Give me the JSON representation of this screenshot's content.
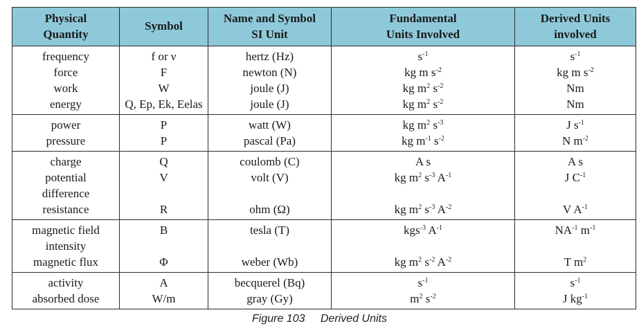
{
  "headers": {
    "quantity": [
      "Physical",
      "Quantity"
    ],
    "symbol": "Symbol",
    "si": [
      "Name and Symbol",
      "SI Unit"
    ],
    "fundamental": [
      "Fundamental",
      "Units Involved"
    ],
    "derived": [
      "Derived Units",
      "involved"
    ]
  },
  "groups": [
    {
      "quantity": [
        "frequency",
        "force",
        "work",
        "energy"
      ],
      "symbol": [
        "f or ν",
        "F",
        "W",
        "Q, Ep, Ek, Eelas"
      ],
      "si": [
        "hertz (Hz)",
        "newton (N)",
        "joule (J)",
        "joule (J)"
      ],
      "fundamental": [
        [
          {
            "t": "s"
          },
          {
            "sup": "-1"
          }
        ],
        [
          {
            "t": "kg m s"
          },
          {
            "sup": "-2"
          }
        ],
        [
          {
            "t": "kg m"
          },
          {
            "sup": "2"
          },
          {
            "t": " s"
          },
          {
            "sup": "-2"
          }
        ],
        [
          {
            "t": "kg m"
          },
          {
            "sup": "2"
          },
          {
            "t": " s"
          },
          {
            "sup": "-2"
          }
        ]
      ],
      "derived": [
        [
          {
            "t": "s"
          },
          {
            "sup": "-1"
          }
        ],
        [
          {
            "t": "kg m s"
          },
          {
            "sup": "-2"
          }
        ],
        [
          {
            "t": "Nm"
          }
        ],
        [
          {
            "t": "Nm"
          }
        ]
      ]
    },
    {
      "quantity": [
        "power",
        "pressure"
      ],
      "symbol": [
        "P",
        "P"
      ],
      "si": [
        "watt (W)",
        "pascal (Pa)"
      ],
      "fundamental": [
        [
          {
            "t": "kg m"
          },
          {
            "sup": "2"
          },
          {
            "t": " s"
          },
          {
            "sup": "-3"
          }
        ],
        [
          {
            "t": "kg m"
          },
          {
            "sup": "-1"
          },
          {
            "t": " s"
          },
          {
            "sup": "-2"
          }
        ]
      ],
      "derived": [
        [
          {
            "t": "J s"
          },
          {
            "sup": "-1"
          }
        ],
        [
          {
            "t": "N m"
          },
          {
            "sup": "-2"
          }
        ]
      ]
    },
    {
      "quantity": [
        "charge",
        "potential",
        "difference",
        "resistance"
      ],
      "symbol": [
        "Q",
        "V",
        "",
        "R"
      ],
      "si": [
        "coulomb (C)",
        "volt (V)",
        "",
        "ohm (Ω)"
      ],
      "fundamental": [
        [
          {
            "t": "A s"
          }
        ],
        [
          {
            "t": "kg m"
          },
          {
            "sup": "2"
          },
          {
            "t": " s"
          },
          {
            "sup": "-3"
          },
          {
            "t": " A"
          },
          {
            "sup": "-1"
          }
        ],
        [],
        [
          {
            "t": "kg m"
          },
          {
            "sup": "2"
          },
          {
            "t": " s"
          },
          {
            "sup": "-3"
          },
          {
            "t": " A"
          },
          {
            "sup": "-2"
          }
        ]
      ],
      "derived": [
        [
          {
            "t": "A s"
          }
        ],
        [
          {
            "t": "J C"
          },
          {
            "sup": "-1"
          }
        ],
        [],
        [
          {
            "t": "V A"
          },
          {
            "sup": "-1"
          }
        ]
      ]
    },
    {
      "quantity": [
        "magnetic field",
        "intensity",
        "magnetic flux"
      ],
      "symbol": [
        "B",
        "",
        "Φ"
      ],
      "si": [
        "tesla (T)",
        "",
        "weber (Wb)"
      ],
      "fundamental": [
        [
          {
            "t": "kgs"
          },
          {
            "sup": "-3"
          },
          {
            "t": " A"
          },
          {
            "sup": "-1"
          }
        ],
        [],
        [
          {
            "t": "kg m"
          },
          {
            "sup": "2"
          },
          {
            "t": " s"
          },
          {
            "sup": "-2"
          },
          {
            "t": " A"
          },
          {
            "sup": "-2"
          }
        ]
      ],
      "derived": [
        [
          {
            "t": "NA"
          },
          {
            "sup": "-1"
          },
          {
            "t": " m"
          },
          {
            "sup": "-1"
          }
        ],
        [],
        [
          {
            "t": "T m"
          },
          {
            "sup": "2"
          }
        ]
      ]
    },
    {
      "quantity": [
        "activity",
        "absorbed dose"
      ],
      "symbol": [
        "A",
        "W/m"
      ],
      "si": [
        "becquerel (Bq)",
        "gray (Gy)"
      ],
      "fundamental": [
        [
          {
            "t": "s"
          },
          {
            "sup": "-1"
          }
        ],
        [
          {
            "t": "m"
          },
          {
            "sup": "2"
          },
          {
            "t": " s"
          },
          {
            "sup": "-2"
          }
        ]
      ],
      "derived": [
        [
          {
            "t": "s"
          },
          {
            "sup": "-1"
          }
        ],
        [
          {
            "t": "J kg"
          },
          {
            "sup": "-1"
          }
        ]
      ]
    }
  ],
  "caption": {
    "number": "Figure 103",
    "title": "Derived Units"
  }
}
